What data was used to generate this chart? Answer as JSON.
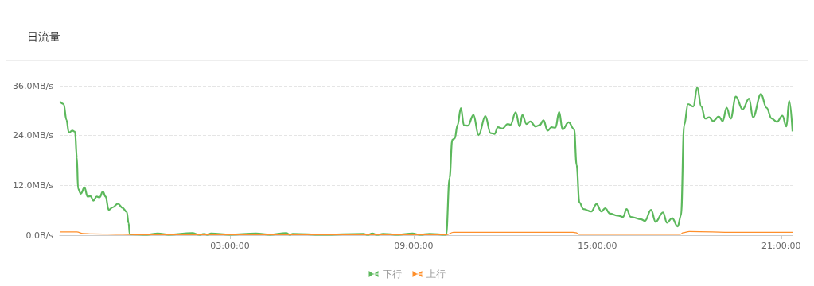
{
  "chart_data": {
    "type": "line",
    "title": "日流量",
    "xlim": [
      -2.56,
      21.37
    ],
    "xticks": [
      {
        "value": 3,
        "label": "03:00:00"
      },
      {
        "value": 9,
        "label": "09:00:00"
      },
      {
        "value": 15,
        "label": "15:00:00"
      },
      {
        "value": 21,
        "label": "21:00:00"
      }
    ],
    "ylim": [
      0,
      36
    ],
    "yticks": [
      {
        "value": 0,
        "label": "0.0B/s"
      },
      {
        "value": 12,
        "label": "12.0MB/s"
      },
      {
        "value": 24,
        "label": "24.0MB/s"
      },
      {
        "value": 36,
        "label": "36.0MB/s"
      }
    ],
    "grid": "y",
    "legend": "bottom",
    "marker": "none",
    "line_style": "solid",
    "series": [
      {
        "name": "下行",
        "color": "#5cb85c",
        "x": [
          -2.56,
          -2.43,
          -2.34,
          -2.26,
          -2.15,
          -2.06,
          -2.0,
          -1.96,
          -1.87,
          -1.75,
          -1.65,
          -1.55,
          -1.46,
          -1.35,
          -1.26,
          -1.15,
          -1.06,
          -0.96,
          -0.83,
          -0.66,
          -0.51,
          -0.37,
          -0.31,
          -0.27,
          0.3,
          0.64,
          1.0,
          1.77,
          2.0,
          2.16,
          2.27,
          2.38,
          3.0,
          3.85,
          4.3,
          4.84,
          4.95,
          5.05,
          6.0,
          7.36,
          7.5,
          7.65,
          7.8,
          8.0,
          8.5,
          8.96,
          9.2,
          9.52,
          10.06,
          10.17,
          10.26,
          10.34,
          10.43,
          10.54,
          10.64,
          10.77,
          10.95,
          11.12,
          11.34,
          11.51,
          11.64,
          11.75,
          11.9,
          12.07,
          12.16,
          12.33,
          12.46,
          12.55,
          12.68,
          12.81,
          12.98,
          13.11,
          13.24,
          13.37,
          13.5,
          13.63,
          13.75,
          13.86,
          14.06,
          14.24,
          14.32,
          14.41,
          14.54,
          14.8,
          14.97,
          15.13,
          15.25,
          15.41,
          15.67,
          15.84,
          15.95,
          16.09,
          16.43,
          16.55,
          16.75,
          16.9,
          17.14,
          17.27,
          17.44,
          17.62,
          17.73,
          17.83,
          17.96,
          18.13,
          18.26,
          18.39,
          18.52,
          18.65,
          18.78,
          18.96,
          19.09,
          19.22,
          19.35,
          19.52,
          19.74,
          19.95,
          20.08,
          20.34,
          20.52,
          20.69,
          20.86,
          21.04,
          21.17,
          21.26,
          21.37
        ],
        "values": [
          32.2,
          31.6,
          27.8,
          24.7,
          25.2,
          24.9,
          18.8,
          11.2,
          10.0,
          11.5,
          9.3,
          9.4,
          8.3,
          9.3,
          9.1,
          10.5,
          9.3,
          6.1,
          6.7,
          7.6,
          6.6,
          5.6,
          2.9,
          0.2,
          0.1,
          0.4,
          0.1,
          0.5,
          0.1,
          0.3,
          0.1,
          0.4,
          0.1,
          0.4,
          0.1,
          0.5,
          0.1,
          0.3,
          0.1,
          0.3,
          0.1,
          0.4,
          0.1,
          0.3,
          0.1,
          0.4,
          0.1,
          0.3,
          0.1,
          13.7,
          23.0,
          23.3,
          26.5,
          30.6,
          26.5,
          26.4,
          29.0,
          24.1,
          28.7,
          24.6,
          24.4,
          26.0,
          25.7,
          26.8,
          26.6,
          29.6,
          26.2,
          29.0,
          26.8,
          27.4,
          26.2,
          26.5,
          27.7,
          25.2,
          26.0,
          25.9,
          29.7,
          25.5,
          27.2,
          25.5,
          16.9,
          7.9,
          6.3,
          5.7,
          7.5,
          5.7,
          6.5,
          5.2,
          4.7,
          4.4,
          6.3,
          4.4,
          3.8,
          3.4,
          6.1,
          3.2,
          5.5,
          3.0,
          4.1,
          2.1,
          4.8,
          26.5,
          31.6,
          31.0,
          35.6,
          31.0,
          28.1,
          28.4,
          27.5,
          28.6,
          27.5,
          30.7,
          28.1,
          33.4,
          30.3,
          32.9,
          28.4,
          34.0,
          30.7,
          28.1,
          27.3,
          28.8,
          26.2,
          32.4,
          25.0
        ]
      },
      {
        "name": "上行",
        "color": "#ff8f2b",
        "x": [
          -2.56,
          -2.0,
          -1.8,
          -1.5,
          -0.5,
          0.0,
          3.0,
          6.0,
          10.0,
          10.06,
          10.3,
          12.0,
          14.2,
          14.3,
          14.4,
          16.0,
          17.7,
          17.8,
          18.0,
          19.5,
          21.37
        ],
        "values": [
          0.8,
          0.8,
          0.4,
          0.3,
          0.2,
          0.1,
          0.1,
          0.1,
          0.1,
          0.1,
          0.7,
          0.7,
          0.7,
          0.6,
          0.2,
          0.2,
          0.2,
          0.6,
          0.9,
          0.7,
          0.7
        ]
      }
    ]
  }
}
